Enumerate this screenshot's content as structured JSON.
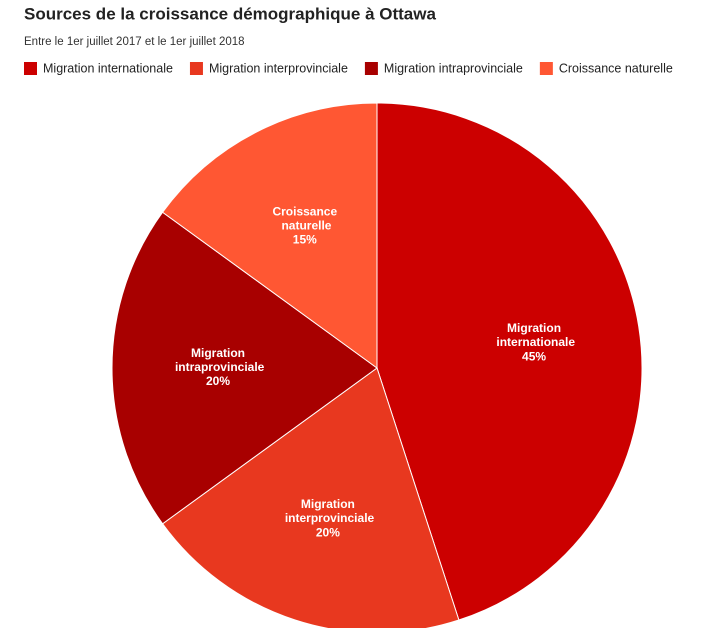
{
  "chart_data": {
    "type": "pie",
    "title": "Sources de la croissance démographique à Ottawa",
    "subtitle": "Entre le 1er juillet 2017 et le 1er juillet 2018",
    "categories": [
      "Migration internationale",
      "Migration interprovinciale",
      "Migration intraprovinciale",
      "Croissance naturelle"
    ],
    "values": [
      45,
      20,
      20,
      15
    ],
    "value_labels": [
      "45%",
      "20%",
      "20%",
      "15%"
    ],
    "colors": [
      "#cc0000",
      "#e8381f",
      "#a80000",
      "#ff5733"
    ],
    "legend": "top"
  }
}
